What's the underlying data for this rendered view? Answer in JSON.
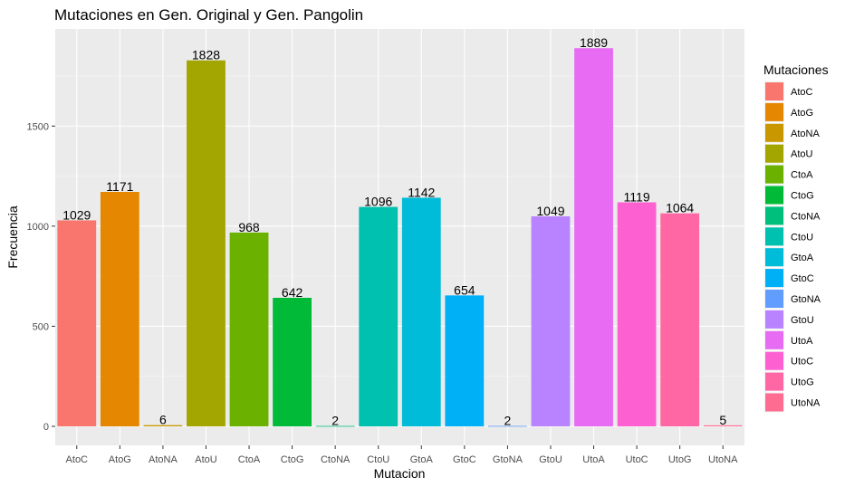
{
  "chart_data": {
    "type": "bar",
    "title": "Mutaciones en Gen. Original y Gen. Pangolin",
    "xlabel": "Mutacion",
    "ylabel": "Frecuencia",
    "categories": [
      "AtoC",
      "AtoG",
      "AtoNA",
      "AtoU",
      "CtoA",
      "CtoG",
      "CtoNA",
      "CtoU",
      "GtoA",
      "GtoC",
      "GtoNA",
      "GtoU",
      "UtoA",
      "UtoC",
      "UtoG",
      "UtoNA"
    ],
    "values": [
      1029,
      1171,
      6,
      1828,
      968,
      642,
      2,
      1096,
      1142,
      654,
      2,
      1049,
      1889,
      1119,
      1064,
      5
    ],
    "colors": [
      "#F8766D",
      "#E58700",
      "#C99800",
      "#A3A500",
      "#6BB100",
      "#00BA38",
      "#00BF7D",
      "#00C0AF",
      "#00BCD8",
      "#00B0F6",
      "#619CFF",
      "#B983FF",
      "#E76BF3",
      "#FD61D1",
      "#FF67A4",
      "#FF6C91"
    ],
    "yticks": [
      0,
      500,
      1000,
      1500
    ],
    "ylim": [
      -95,
      1985
    ],
    "grid": true,
    "legend": {
      "title": "Mutaciones",
      "position": "right",
      "entries": [
        "AtoC",
        "AtoG",
        "AtoNA",
        "AtoU",
        "CtoA",
        "CtoG",
        "CtoNA",
        "CtoU",
        "GtoA",
        "GtoC",
        "GtoNA",
        "GtoU",
        "UtoA",
        "UtoC",
        "UtoG",
        "UtoNA"
      ]
    }
  }
}
